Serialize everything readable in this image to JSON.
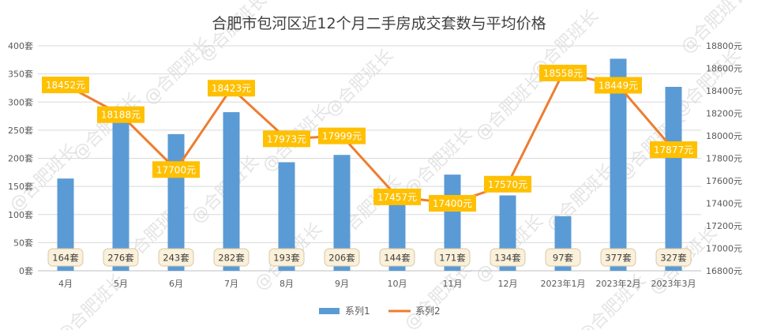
{
  "chart_data": {
    "type": "bar+line",
    "title": "合肥市包河区近12个月二手房成交套数与平均价格",
    "categories": [
      "4月",
      "5月",
      "6月",
      "7月",
      "8月",
      "9月",
      "10月",
      "11月",
      "12月",
      "2023年1月",
      "2023年2月",
      "2023年3月"
    ],
    "series": [
      {
        "name": "系列1",
        "type": "bar",
        "axis": "left",
        "unit": "套",
        "color": "#5b9bd5",
        "values": [
          164,
          276,
          243,
          282,
          193,
          206,
          144,
          171,
          134,
          97,
          377,
          327
        ],
        "labels": [
          "164套",
          "276套",
          "243套",
          "282套",
          "193套",
          "206套",
          "144套",
          "171套",
          "134套",
          "97套",
          "377套",
          "327套"
        ]
      },
      {
        "name": "系列2",
        "type": "line",
        "axis": "right",
        "unit": "元",
        "color": "#ed7d31",
        "values": [
          18452,
          18188,
          17700,
          18423,
          17973,
          17999,
          17457,
          17400,
          17570,
          18558,
          18449,
          17877
        ],
        "labels": [
          "18452元",
          "18188元",
          "17700元",
          "18423元",
          "17973元",
          "17999元",
          "17457元",
          "17400元",
          "17570元",
          "18558元",
          "18449元",
          "17877元"
        ]
      }
    ],
    "y_left": {
      "min": 0,
      "max": 400,
      "step": 50,
      "ticks": [
        "0套",
        "50套",
        "100套",
        "150套",
        "200套",
        "250套",
        "300套",
        "350套",
        "400套"
      ]
    },
    "y_right": {
      "min": 16800,
      "max": 18800,
      "step": 200,
      "ticks": [
        "16800元",
        "17000元",
        "17200元",
        "17400元",
        "17600元",
        "17800元",
        "18000元",
        "18200元",
        "18400元",
        "18600元",
        "18800元"
      ]
    },
    "grid": true,
    "legend_position": "bottom-center",
    "watermark": "@合肥班长"
  }
}
